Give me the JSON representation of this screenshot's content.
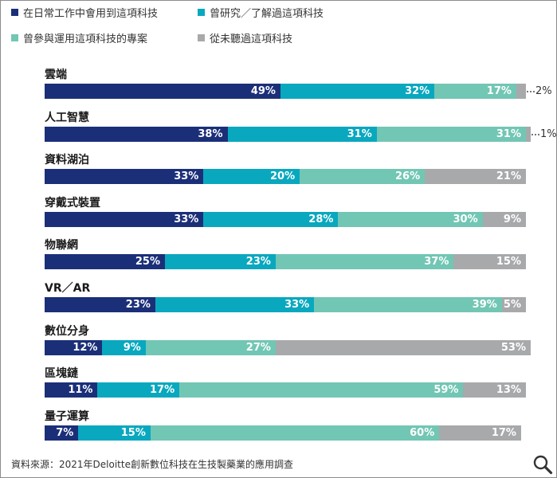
{
  "chart_data": {
    "type": "bar",
    "orientation": "horizontal",
    "stacked": true,
    "xlim": [
      0,
      100
    ],
    "categories": [
      "雲端",
      "人工智慧",
      "資料湖泊",
      "穿戴式裝置",
      "物聯網",
      "VR／AR",
      "數位分身",
      "區塊鏈",
      "量子運算"
    ],
    "series": [
      {
        "name": "在日常工作中會用到這項科技",
        "color": "#1b2f79",
        "values": [
          49,
          38,
          33,
          33,
          25,
          23,
          12,
          11,
          7
        ]
      },
      {
        "name": "曾研究／了解過這項科技",
        "color": "#09a8bf",
        "values": [
          32,
          31,
          20,
          28,
          23,
          33,
          9,
          17,
          15
        ]
      },
      {
        "name": "曾參與運用這項科技的專案",
        "color": "#72c6b4",
        "values": [
          17,
          31,
          26,
          30,
          37,
          39,
          27,
          59,
          60
        ]
      },
      {
        "name": "從未聽過這項科技",
        "color": "#a7a9ab",
        "values": [
          2,
          1,
          21,
          9,
          15,
          5,
          53,
          13,
          17
        ]
      }
    ],
    "legend": "top"
  },
  "source_note": "資料來源：2021年Deloitte創新數位科技在生技製藥業的應用調查",
  "zoom_icon": "magnifier-icon"
}
